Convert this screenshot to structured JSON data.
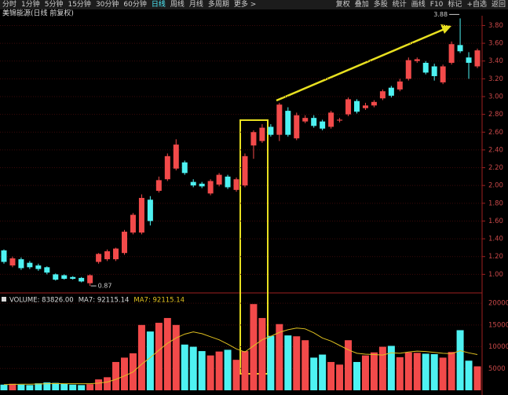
{
  "toolbar": {
    "left": [
      "分时",
      "1分钟",
      "5分钟",
      "15分钟",
      "30分钟",
      "60分钟",
      "日线",
      "周线",
      "月线",
      "多周期",
      "更多 >"
    ],
    "active": "日线",
    "right": [
      "复权",
      "叠加",
      "多股",
      "统计",
      "画线",
      "F10",
      "标记",
      "+自选",
      "返回"
    ]
  },
  "chart_data": [
    {
      "type": "candlestick",
      "title": "美锦能源(日线 前复权)",
      "open": [
        1.27,
        1.1,
        1.17,
        1.13,
        1.1,
        1.08,
        1.0,
        0.99,
        0.97,
        0.96,
        0.9,
        1.14,
        1.17,
        1.17,
        1.24,
        1.47,
        1.47,
        1.84,
        1.94,
        2.07,
        2.19,
        2.26,
        2.04,
        2.02,
        1.91,
        2.01,
        2.1,
        1.95,
        2.0,
        2.45,
        2.5,
        2.66,
        2.57,
        2.84,
        2.53,
        2.72,
        2.76,
        2.72,
        2.66,
        2.73,
        2.8,
        2.95,
        2.87,
        2.9,
        2.98,
        3.1,
        3.08,
        3.2,
        3.4,
        3.38,
        3.34,
        3.16,
        3.38,
        3.58,
        3.44,
        3.34
      ],
      "high": [
        1.28,
        1.2,
        1.19,
        1.15,
        1.12,
        1.09,
        1.01,
        1.0,
        0.98,
        0.97,
        1.0,
        1.24,
        1.28,
        1.3,
        1.5,
        1.69,
        1.9,
        1.88,
        2.1,
        2.36,
        2.52,
        2.28,
        2.07,
        2.04,
        2.07,
        2.14,
        2.12,
        2.09,
        2.36,
        2.62,
        2.69,
        2.69,
        2.93,
        2.88,
        2.82,
        2.79,
        2.79,
        2.74,
        2.84,
        2.76,
        2.99,
        2.97,
        2.93,
        2.96,
        3.08,
        3.12,
        3.2,
        3.44,
        3.44,
        3.4,
        3.37,
        3.36,
        3.62,
        3.88,
        3.5,
        3.54
      ],
      "low": [
        1.12,
        1.08,
        1.05,
        1.06,
        1.04,
        1.0,
        0.93,
        0.94,
        0.94,
        0.91,
        0.87,
        1.12,
        1.15,
        1.15,
        1.22,
        1.45,
        1.45,
        1.55,
        1.92,
        2.05,
        2.17,
        2.12,
        1.98,
        1.97,
        1.89,
        1.99,
        1.96,
        1.93,
        1.98,
        2.3,
        2.48,
        2.55,
        2.5,
        2.55,
        2.51,
        2.7,
        2.65,
        2.62,
        2.64,
        2.71,
        2.78,
        2.81,
        2.85,
        2.88,
        2.96,
        2.99,
        3.06,
        3.18,
        3.38,
        3.25,
        3.18,
        3.14,
        3.36,
        3.49,
        3.2,
        3.32
      ],
      "close": [
        1.14,
        1.18,
        1.07,
        1.08,
        1.06,
        1.02,
        0.94,
        0.95,
        0.95,
        0.92,
        0.99,
        1.23,
        1.26,
        1.29,
        1.48,
        1.67,
        1.86,
        1.6,
        2.06,
        2.33,
        2.46,
        2.14,
        2.0,
        1.99,
        2.05,
        2.12,
        1.98,
        2.07,
        2.33,
        2.6,
        2.65,
        2.57,
        2.91,
        2.57,
        2.79,
        2.76,
        2.67,
        2.64,
        2.82,
        2.74,
        2.97,
        2.83,
        2.9,
        2.94,
        3.06,
        3.01,
        3.17,
        3.41,
        3.42,
        3.27,
        3.23,
        3.34,
        3.59,
        3.51,
        3.38,
        3.52
      ],
      "up_color": "#f24a4a",
      "down_color": "#4ef2f2",
      "ylim": [
        0.8,
        3.91
      ],
      "yticks": [
        {
          "value": 1,
          "label": "1.00"
        },
        {
          "value": 1.2,
          "label": "1.20"
        },
        {
          "value": 1.4,
          "label": "1.40"
        },
        {
          "value": 1.6,
          "label": "1.60"
        },
        {
          "value": 1.8,
          "label": "1.80"
        },
        {
          "value": 2,
          "label": "2.00"
        },
        {
          "value": 2.2,
          "label": "2.20"
        },
        {
          "value": 2.4,
          "label": "2.40"
        },
        {
          "value": 2.6,
          "label": "2.60"
        },
        {
          "value": 2.8,
          "label": "2.80"
        },
        {
          "value": 3,
          "label": "3.00"
        },
        {
          "value": 3.2,
          "label": "3.20"
        },
        {
          "value": 3.4,
          "label": "3.40"
        },
        {
          "value": 3.6,
          "label": "3.60"
        },
        {
          "value": 3.8,
          "label": "3.80"
        }
      ],
      "max_label": "3.88",
      "min_label": "0.87",
      "grid": true
    },
    {
      "type": "bar",
      "legend": [
        "VOLUME: 83826.00",
        "MA7: 92115.14",
        "MA7: 92115.14"
      ],
      "values": [
        1300,
        1500,
        1300,
        1200,
        1600,
        1800,
        1700,
        1500,
        1300,
        1200,
        1400,
        2500,
        3000,
        6500,
        7500,
        8500,
        15000,
        13500,
        15500,
        16600,
        15000,
        10500,
        10000,
        9000,
        8000,
        8900,
        9300,
        7000,
        9000,
        19800,
        16600,
        12500,
        15200,
        12600,
        12400,
        11500,
        7500,
        8200,
        6500,
        5900,
        11500,
        6500,
        8000,
        8700,
        10000,
        10200,
        7600,
        8700,
        8600,
        8400,
        8300,
        7500,
        8800,
        13800,
        6800,
        5500
      ],
      "ma7": [
        1300,
        1350,
        1400,
        1400,
        1450,
        1500,
        1550,
        1500,
        1500,
        1500,
        1500,
        1650,
        1900,
        2500,
        3300,
        4200,
        6000,
        7500,
        9200,
        10800,
        12000,
        12900,
        13400,
        13000,
        12300,
        11600,
        10600,
        9500,
        8800,
        10200,
        11600,
        12400,
        13300,
        13900,
        14300,
        14100,
        13200,
        12000,
        11300,
        10300,
        9300,
        8500,
        8300,
        8200,
        8100,
        8600,
        8500,
        8800,
        9000,
        8900,
        8700,
        8500,
        8400,
        9100,
        8600,
        8200
      ],
      "color_ma": "#e0c020",
      "ylim": [
        0,
        22000
      ],
      "yticks": [
        5000,
        10000,
        15000,
        20000
      ],
      "grid": true
    }
  ]
}
